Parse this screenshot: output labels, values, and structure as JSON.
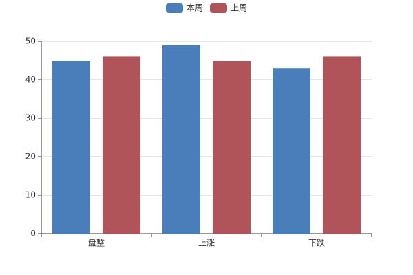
{
  "chart_data": {
    "type": "bar",
    "categories": [
      "盘整",
      "上涨",
      "下跌"
    ],
    "series": [
      {
        "name": "本周",
        "color": "#4a7ebb",
        "values": [
          45,
          49,
          43
        ]
      },
      {
        "name": "上周",
        "color": "#b05459",
        "values": [
          46,
          45,
          46
        ]
      }
    ],
    "ylim": [
      0,
      50
    ],
    "yticks": [
      0,
      10,
      20,
      30,
      40,
      50
    ],
    "grid": true,
    "legend": "top"
  }
}
